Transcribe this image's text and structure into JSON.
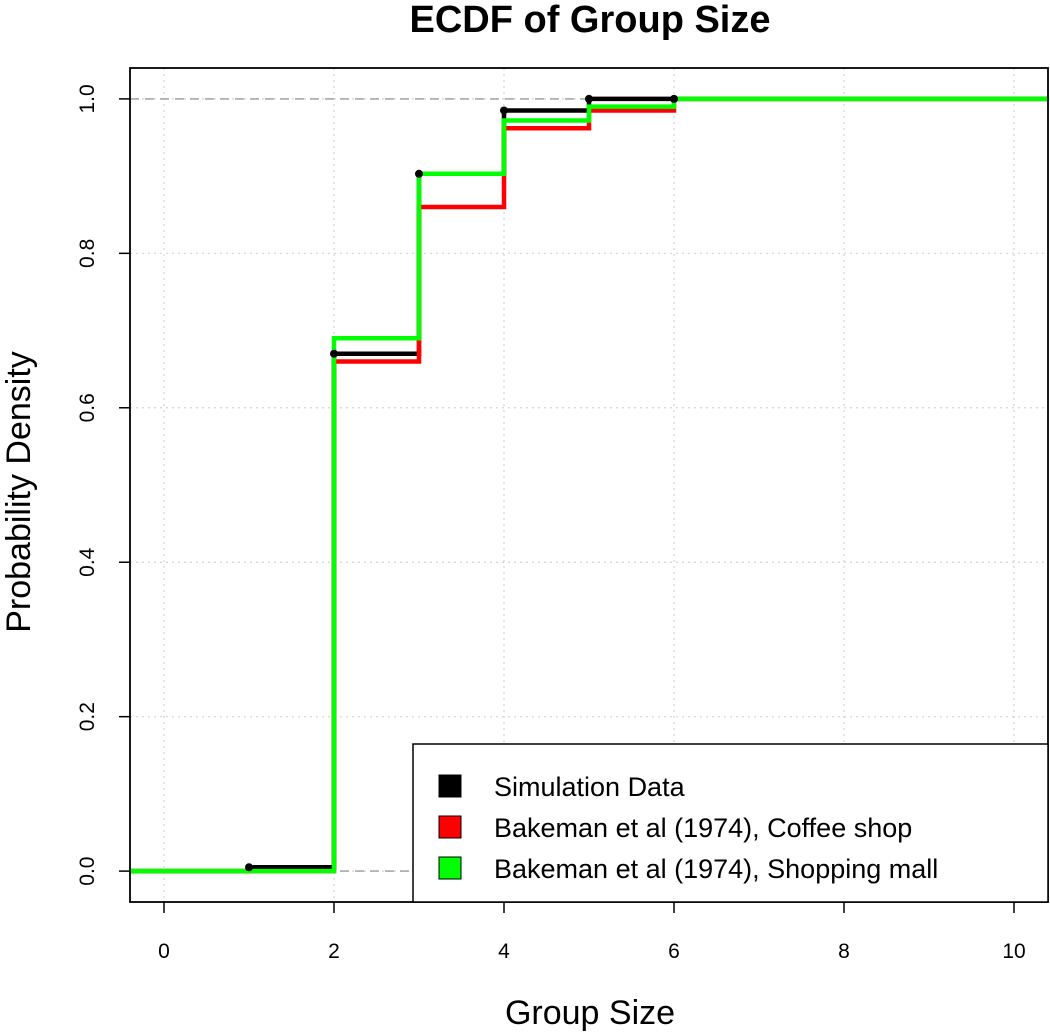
{
  "chart_data": {
    "type": "line",
    "step": true,
    "title": "ECDF of Group Size",
    "xlabel": "Group Size",
    "ylabel": "Probability Density",
    "xlim": [
      -0.4,
      10.4
    ],
    "ylim": [
      -0.04,
      1.04
    ],
    "x_ticks": [
      0,
      2,
      4,
      6,
      8,
      10
    ],
    "y_ticks": [
      0.0,
      0.2,
      0.4,
      0.6,
      0.8,
      1.0
    ],
    "x_tick_labels": [
      "0",
      "2",
      "4",
      "6",
      "8",
      "10"
    ],
    "y_tick_labels": [
      "0.0",
      "0.2",
      "0.4",
      "0.6",
      "0.8",
      "1.0"
    ],
    "grid": true,
    "grid_style": "dotted",
    "reference_lines": [
      0,
      1
    ],
    "legend_position": "bottom-right",
    "series": [
      {
        "name": "Simulation Data",
        "color": "#000000",
        "markers": true,
        "x": [
          1,
          2,
          3,
          4,
          5,
          6
        ],
        "y": [
          0.005,
          0.67,
          0.903,
          0.985,
          1.0,
          1.0
        ]
      },
      {
        "name": "Bakeman et al (1974), Coffee shop",
        "color": "#ff0000",
        "markers": false,
        "x": [
          1,
          2,
          3,
          4,
          5,
          6
        ],
        "y": [
          0.0,
          0.66,
          0.86,
          0.962,
          0.985,
          1.0
        ]
      },
      {
        "name": "Bakeman et al (1974), Shopping mall",
        "color": "#00ff00",
        "markers": false,
        "x": [
          1,
          2,
          3,
          4,
          5,
          6
        ],
        "y": [
          0.0,
          0.69,
          0.903,
          0.972,
          0.99,
          1.0
        ]
      }
    ]
  }
}
